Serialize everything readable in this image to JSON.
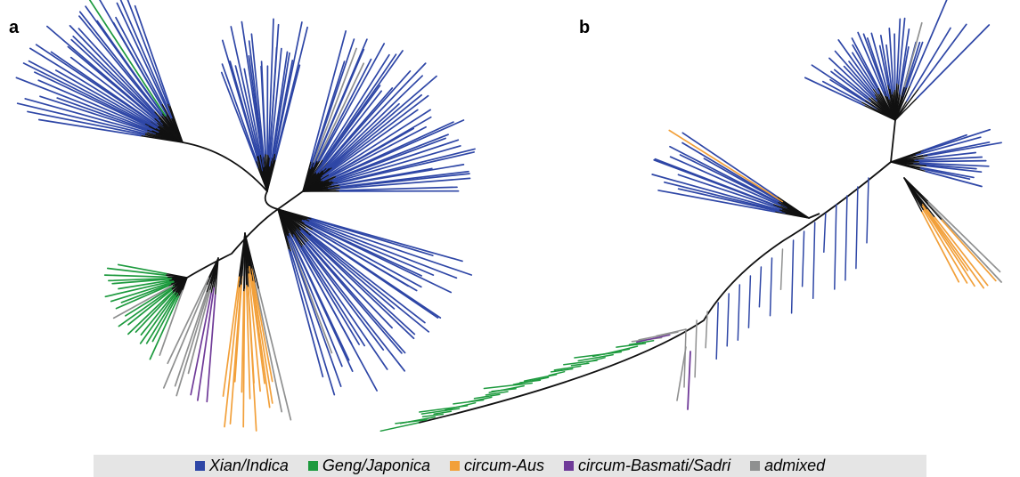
{
  "panels": [
    {
      "label": "a"
    },
    {
      "label": "b"
    }
  ],
  "legend": [
    {
      "label": "Xian/Indica",
      "color": "#2e46a6"
    },
    {
      "label": "Geng/Japonica",
      "color": "#1d9a3e"
    },
    {
      "label": "circum-Aus",
      "color": "#f2a03a"
    },
    {
      "label": "circum-Basmati/Sadri",
      "color": "#6f3a98"
    },
    {
      "label": "admixed",
      "color": "#8f9090"
    }
  ],
  "colors": {
    "internal": "#111111"
  }
}
